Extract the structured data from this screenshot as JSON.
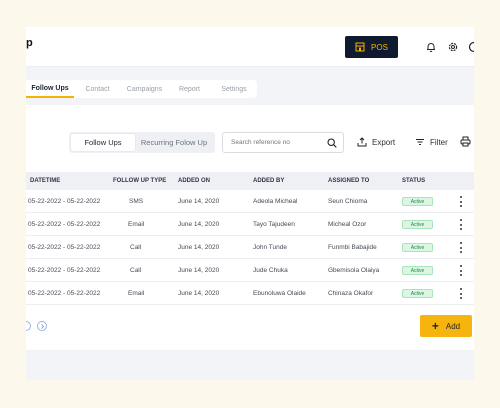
{
  "header": {
    "logo_text": "p",
    "pos_label": "POS",
    "icons": [
      "bell-icon",
      "gear-icon",
      "profile-icon"
    ]
  },
  "tabs": [
    {
      "label": "Follow Ups",
      "active": true
    },
    {
      "label": "Contact",
      "active": false
    },
    {
      "label": "Campaigns",
      "active": false
    },
    {
      "label": "Report",
      "active": false
    },
    {
      "label": "Settings",
      "active": false
    }
  ],
  "toolbar": {
    "segments": [
      {
        "label": "Follow Ups",
        "active": true
      },
      {
        "label": "Recurring Folow Up",
        "active": false
      }
    ],
    "search_placeholder": "Search reference no",
    "export_label": "Export",
    "filter_label": "Filter"
  },
  "table": {
    "columns": [
      "DATETIME",
      "FOLLOW UP TYPE",
      "ADDED ON",
      "ADDED BY",
      "ASSIGNED TO",
      "STATUS"
    ],
    "rows": [
      {
        "datetime": "05-22-2022 - 05-22-2022",
        "type": "SMS",
        "added_on": "June 14, 2020",
        "added_by": "Adeola Micheal",
        "assigned_to": "Seun Chioma",
        "status": "Active"
      },
      {
        "datetime": "05-22-2022 - 05-22-2022",
        "type": "Email",
        "added_on": "June 14, 2020",
        "added_by": "Tayo Tajudeen",
        "assigned_to": "Micheal Ozor",
        "status": "Active"
      },
      {
        "datetime": "05-22-2022 - 05-22-2022",
        "type": "Call",
        "added_on": "June 14, 2020",
        "added_by": "John Tunde",
        "assigned_to": "Funmbi Babajide",
        "status": "Active"
      },
      {
        "datetime": "05-22-2022 - 05-22-2022",
        "type": "Call",
        "added_on": "June 14, 2020",
        "added_by": "Jude Chuka",
        "assigned_to": "Gbemisola Olaiya",
        "status": "Active"
      },
      {
        "datetime": "05-22-2022 - 05-22-2022",
        "type": "Email",
        "added_on": "June 14, 2020",
        "added_by": "Ebunoluwa Olaide",
        "assigned_to": "Chinaza Okafor",
        "status": "Active"
      }
    ]
  },
  "footer": {
    "add_label": "Add"
  },
  "colors": {
    "accent": "#F6B40E",
    "dark": "#0F1A2E",
    "status_active_bg": "#DCF6E3",
    "status_active_text": "#1E8A45"
  }
}
